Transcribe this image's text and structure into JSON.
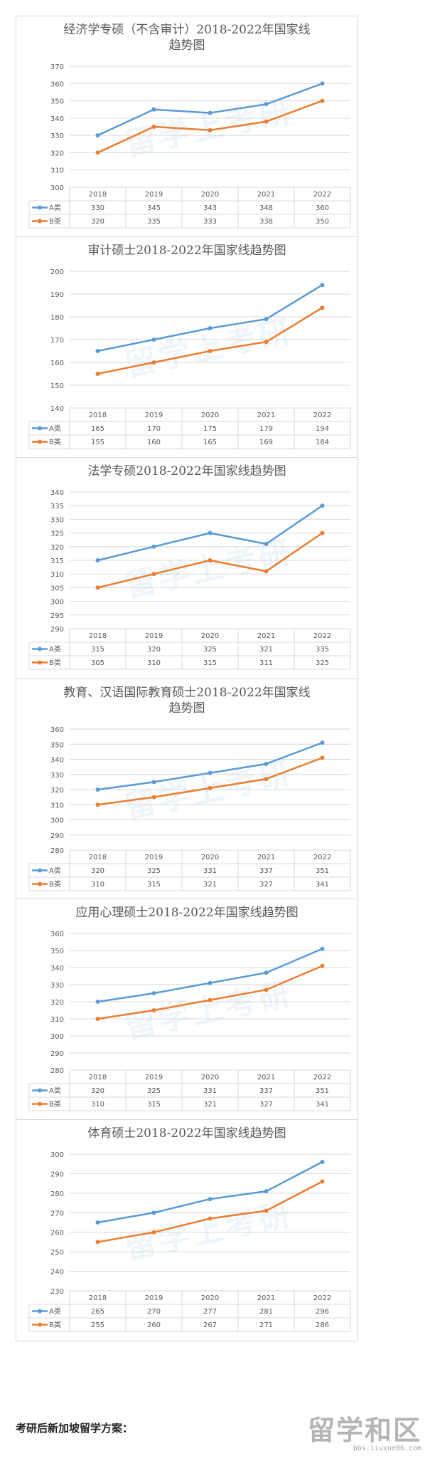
{
  "watermark": "留学上考研",
  "footer": {
    "heading": "考研后新加坡留学方案：",
    "logo_text": "留学和区",
    "logo_url": "bbs.liuxue86.com"
  },
  "colors": {
    "A": "#5b9bd5",
    "B": "#ed7d31",
    "grid": "#d9d9d9",
    "text": "#595959"
  },
  "chart_data": [
    {
      "type": "line",
      "title": "经济学专硕（不含审计）2018-2022年国家线\n趋势图",
      "categories": [
        "2018",
        "2019",
        "2020",
        "2021",
        "2022"
      ],
      "series": [
        {
          "name": "A类",
          "values": [
            330,
            345,
            343,
            348,
            360
          ]
        },
        {
          "name": "B类",
          "values": [
            320,
            335,
            333,
            338,
            350
          ]
        }
      ],
      "ylim": [
        300,
        370
      ],
      "ystep": 10,
      "grid": true,
      "legend": "data-table"
    },
    {
      "type": "line",
      "title": "审计硕士2018-2022年国家线趋势图",
      "categories": [
        "2018",
        "2019",
        "2020",
        "2021",
        "2022"
      ],
      "series": [
        {
          "name": "A类",
          "values": [
            165,
            170,
            175,
            179,
            194
          ]
        },
        {
          "name": "B类",
          "values": [
            155,
            160,
            165,
            169,
            184
          ]
        }
      ],
      "ylim": [
        140,
        200
      ],
      "ystep": 10,
      "grid": true,
      "legend": "data-table"
    },
    {
      "type": "line",
      "title": "法学专硕2018-2022年国家线趋势图",
      "categories": [
        "2018",
        "2019",
        "2020",
        "2021",
        "2022"
      ],
      "series": [
        {
          "name": "A类",
          "values": [
            315,
            320,
            325,
            321,
            335
          ]
        },
        {
          "name": "B类",
          "values": [
            305,
            310,
            315,
            311,
            325
          ]
        }
      ],
      "ylim": [
        290,
        340
      ],
      "ystep": 5,
      "grid": true,
      "legend": "data-table"
    },
    {
      "type": "line",
      "title": "教育、汉语国际教育硕士2018-2022年国家线\n趋势图",
      "categories": [
        "2018",
        "2019",
        "2020",
        "2021",
        "2022"
      ],
      "series": [
        {
          "name": "A类",
          "values": [
            320,
            325,
            331,
            337,
            351
          ]
        },
        {
          "name": "B类",
          "values": [
            310,
            315,
            321,
            327,
            341
          ]
        }
      ],
      "ylim": [
        280,
        360
      ],
      "ystep": 10,
      "grid": true,
      "legend": "data-table"
    },
    {
      "type": "line",
      "title": "应用心理硕士2018-2022年国家线趋势图",
      "categories": [
        "2018",
        "2019",
        "2020",
        "2021",
        "2022"
      ],
      "series": [
        {
          "name": "A类",
          "values": [
            320,
            325,
            331,
            337,
            351
          ]
        },
        {
          "name": "B类",
          "values": [
            310,
            315,
            321,
            327,
            341
          ]
        }
      ],
      "ylim": [
        280,
        360
      ],
      "ystep": 10,
      "grid": true,
      "legend": "data-table"
    },
    {
      "type": "line",
      "title": "体育硕士2018-2022年国家线趋势图",
      "categories": [
        "2018",
        "2019",
        "2020",
        "2021",
        "2022"
      ],
      "series": [
        {
          "name": "A类",
          "values": [
            265,
            270,
            277,
            281,
            296
          ]
        },
        {
          "name": "B类",
          "values": [
            255,
            260,
            267,
            271,
            286
          ]
        }
      ],
      "ylim": [
        230,
        300
      ],
      "ystep": 10,
      "grid": true,
      "legend": "data-table"
    }
  ]
}
